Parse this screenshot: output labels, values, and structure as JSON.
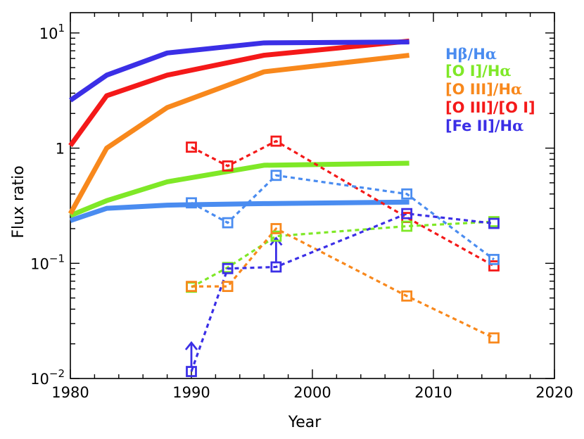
{
  "chart_data": {
    "type": "line",
    "xlabel": "Year",
    "ylabel": "Flux ratio",
    "xlim": [
      1980,
      2020
    ],
    "ylim": [
      0.01,
      15
    ],
    "yscale": "log",
    "x_ticks": [
      1980,
      1990,
      2000,
      2010,
      2020
    ],
    "x_tick_labels": [
      "1980",
      "1990",
      "2000",
      "2010",
      "2020"
    ],
    "y_tick_labels": [
      {
        "value": 10,
        "base": "10",
        "exp": "1"
      },
      {
        "value": 1,
        "base": "1",
        "exp": ""
      },
      {
        "value": 0.1,
        "base": "10",
        "exp": "−1"
      },
      {
        "value": 0.01,
        "base": "10",
        "exp": "−2"
      }
    ],
    "legend": [
      {
        "parts": [
          [
            "H",
            "normal"
          ],
          [
            "β",
            "greek"
          ],
          [
            "/H",
            "normal"
          ],
          [
            "α",
            "greek"
          ]
        ],
        "color": "#4a8cf0"
      },
      {
        "parts": [
          [
            "[O I]/H",
            "normal"
          ],
          [
            "α",
            "greek"
          ]
        ],
        "color": "#7fe827"
      },
      {
        "parts": [
          [
            "[O III]/H",
            "normal"
          ],
          [
            "α",
            "greek"
          ]
        ],
        "color": "#f8881c"
      },
      {
        "parts": [
          [
            "[O III]/[O I]",
            "normal"
          ]
        ],
        "color": "#f41919"
      },
      {
        "parts": [
          [
            "[Fe II]/H",
            "normal"
          ],
          [
            "α",
            "greek"
          ]
        ],
        "color": "#3b2fe6"
      }
    ],
    "model_series": [
      {
        "name": "[O I]/Ha model",
        "color": "#7fe827",
        "x": [
          1980,
          1983,
          1988,
          1996,
          2008
        ],
        "y": [
          0.26,
          0.35,
          0.51,
          0.71,
          0.74
        ]
      },
      {
        "name": "Hb/Ha model",
        "color": "#4a8cf0",
        "x": [
          1980,
          1983,
          1988,
          1996,
          2008
        ],
        "y": [
          0.235,
          0.3,
          0.32,
          0.33,
          0.34
        ]
      },
      {
        "name": "[O III]/Ha model",
        "color": "#f8881c",
        "x": [
          1980,
          1983,
          1988,
          1996,
          2008
        ],
        "y": [
          0.27,
          1.0,
          2.25,
          4.6,
          6.4
        ]
      },
      {
        "name": "[O III]/[O I] model",
        "color": "#f41919",
        "x": [
          1980,
          1983,
          1988,
          1996,
          2008
        ],
        "y": [
          1.05,
          2.85,
          4.3,
          6.4,
          8.5
        ]
      },
      {
        "name": "[Fe II]/Ha model",
        "color": "#3b2fe6",
        "x": [
          1980,
          1983,
          1988,
          1996,
          2008
        ],
        "y": [
          2.6,
          4.3,
          6.7,
          8.2,
          8.35
        ]
      }
    ],
    "observed_series": [
      {
        "name": "[O III]/[O I] observed",
        "color": "#f41919",
        "x": [
          1990,
          1993,
          1997,
          2007.8,
          2015
        ],
        "y": [
          1.02,
          0.7,
          1.15,
          0.25,
          0.095
        ]
      },
      {
        "name": "Hb/Ha observed",
        "color": "#4a8cf0",
        "x": [
          1990,
          1993,
          1997,
          2007.8,
          2015
        ],
        "y": [
          0.335,
          0.225,
          0.58,
          0.4,
          0.108
        ]
      },
      {
        "name": "[O I]/Ha observed",
        "color": "#7fe827",
        "x": [
          1990,
          1993,
          1997,
          2007.8,
          2015
        ],
        "y": [
          0.062,
          0.092,
          0.172,
          0.21,
          0.23
        ]
      },
      {
        "name": "[O III]/Ha observed",
        "color": "#f8881c",
        "x": [
          1990,
          1993,
          1997,
          2007.8,
          2015
        ],
        "y": [
          0.063,
          0.063,
          0.2,
          0.052,
          0.0225
        ]
      },
      {
        "name": "[Fe II]/Ha observed",
        "color": "#3b2fe6",
        "x": [
          1990,
          1993,
          1997,
          2007.8,
          2015
        ],
        "y": [
          0.0115,
          0.09,
          0.093,
          0.27,
          0.222
        ]
      }
    ],
    "lower_limits": [
      {
        "color": "#3b2fe6",
        "x": 1990,
        "y": 0.0115
      },
      {
        "color": "#3b2fe6",
        "x": 1997,
        "y": 0.093
      }
    ]
  }
}
